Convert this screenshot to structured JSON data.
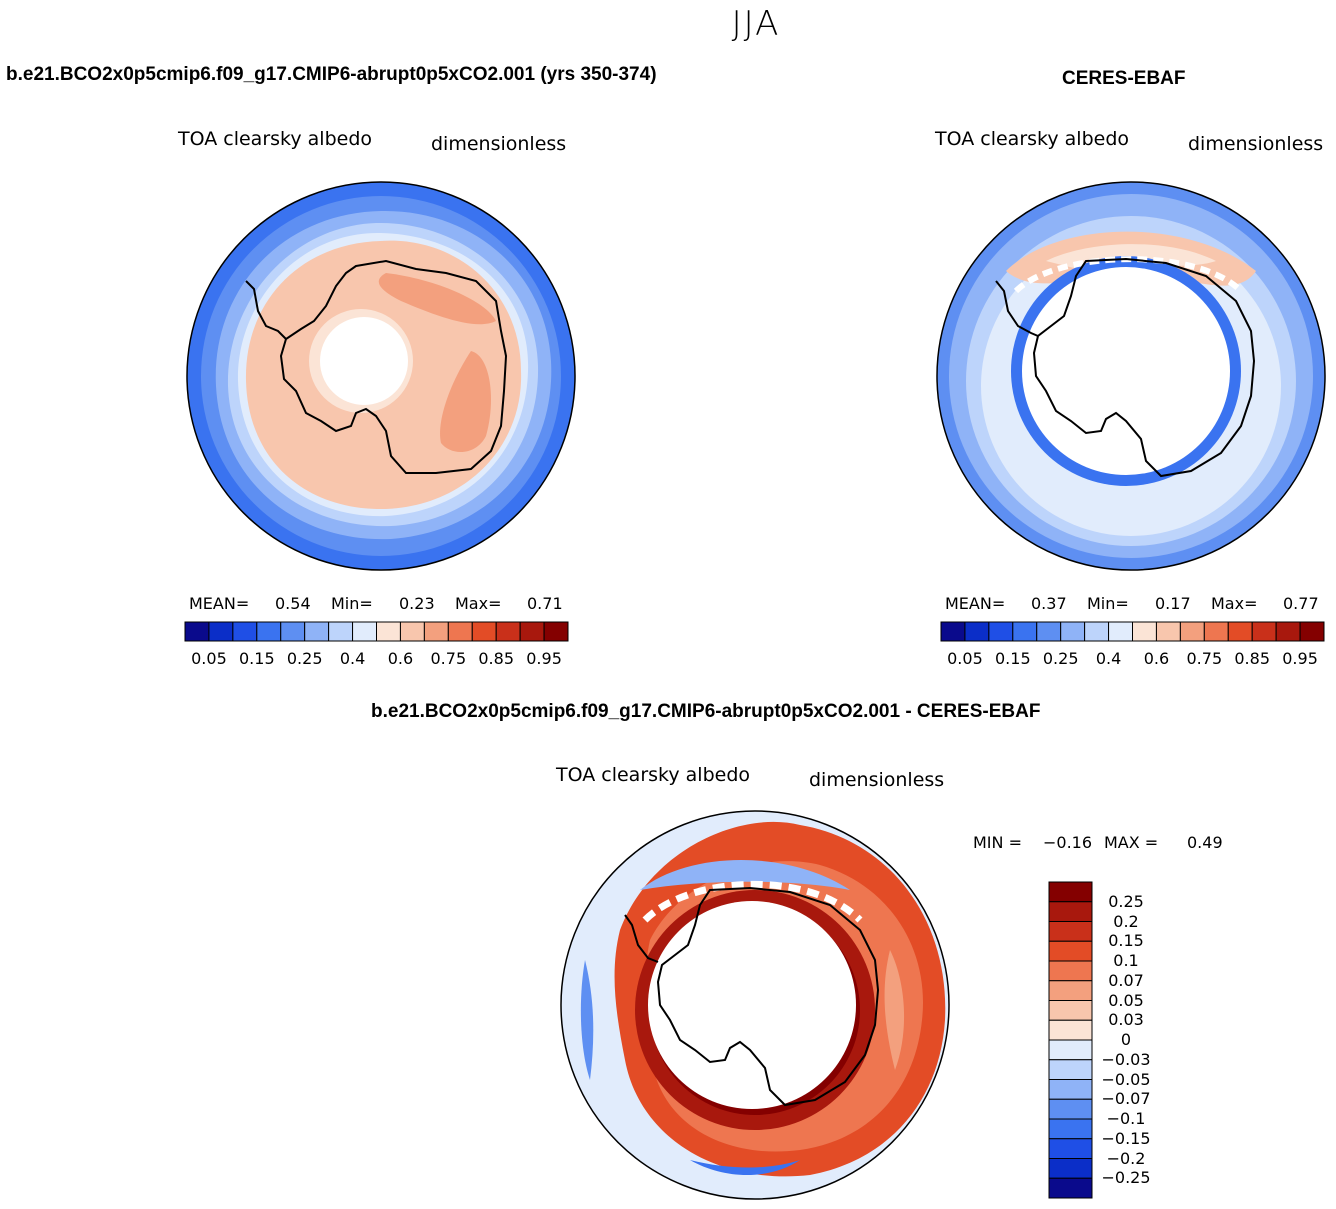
{
  "season": "JJA",
  "panels": {
    "model": {
      "title": "b.e21.BCO2x0p5cmip6.f09_g17.CMIP6-abrupt0p5xCO2.001 (yrs 350-374)",
      "variable": "TOA clearsky albedo",
      "units": "dimensionless",
      "stats": {
        "mean_label": "MEAN=",
        "mean": "0.54",
        "min_label": "Min=",
        "min": "0.23",
        "max_label": "Max=",
        "max": "0.71"
      }
    },
    "obs": {
      "title": "CERES-EBAF",
      "variable": "TOA clearsky albedo",
      "units": "dimensionless",
      "stats": {
        "mean_label": "MEAN=",
        "mean": "0.37",
        "min_label": "Min=",
        "min": "0.17",
        "max_label": "Max=",
        "max": "0.77"
      }
    },
    "diff": {
      "title": "b.e21.BCO2x0p5cmip6.f09_g17.CMIP6-abrupt0p5xCO2.001 - CERES-EBAF",
      "variable": "TOA clearsky albedo",
      "units": "dimensionless",
      "stats": {
        "min_label": "MIN =",
        "min": "−0.16",
        "max_label": "MAX =",
        "max": "0.49"
      }
    }
  },
  "colorbar_horizontal": {
    "tick_labels": [
      "0.05",
      "0.15",
      "0.25",
      "0.4",
      "0.6",
      "0.75",
      "0.85",
      "0.95"
    ],
    "colors": [
      "#0a0a8c",
      "#0b2ec8",
      "#1f4fe6",
      "#3a73f0",
      "#5e8ff2",
      "#8fb3f7",
      "#bdd4fb",
      "#e1ecfc",
      "#fbe4d6",
      "#f8c6ad",
      "#f3a07e",
      "#ee7650",
      "#e34c26",
      "#c9301a",
      "#a8180d",
      "#840000"
    ]
  },
  "colorbar_vertical": {
    "tick_labels": [
      "0.25",
      "0.2",
      "0.15",
      "0.1",
      "0.07",
      "0.05",
      "0.03",
      "0",
      "−0.03",
      "−0.05",
      "−0.07",
      "−0.1",
      "−0.15",
      "−0.2",
      "−0.25"
    ],
    "colors": [
      "#840000",
      "#a8180d",
      "#c9301a",
      "#e34c26",
      "#ee7650",
      "#f3a07e",
      "#f8c6ad",
      "#fbe4d6",
      "#e1ecfc",
      "#bdd4fb",
      "#8fb3f7",
      "#5e8ff2",
      "#3a73f0",
      "#1f4fe6",
      "#0b2ec8",
      "#0a0a8c"
    ]
  },
  "chart_data": [
    {
      "type": "heatmap",
      "title": "b.e21.BCO2x0p5cmip6.f09_g17.CMIP6-abrupt0p5xCO2.001 (yrs 350-374)",
      "variable": "TOA clearsky albedo",
      "units": "dimensionless",
      "mean": 0.54,
      "min": 0.23,
      "max": 0.71,
      "projection": "south polar stereographic"
    },
    {
      "type": "heatmap",
      "title": "CERES-EBAF",
      "variable": "TOA clearsky albedo",
      "units": "dimensionless",
      "mean": 0.37,
      "min": 0.17,
      "max": 0.77,
      "projection": "south polar stereographic"
    },
    {
      "type": "heatmap",
      "title": "b.e21.BCO2x0p5cmip6.f09_g17.CMIP6-abrupt0p5xCO2.001 - CERES-EBAF",
      "variable": "TOA clearsky albedo",
      "units": "dimensionless",
      "min": -0.16,
      "max": 0.49,
      "projection": "south polar stereographic"
    }
  ]
}
